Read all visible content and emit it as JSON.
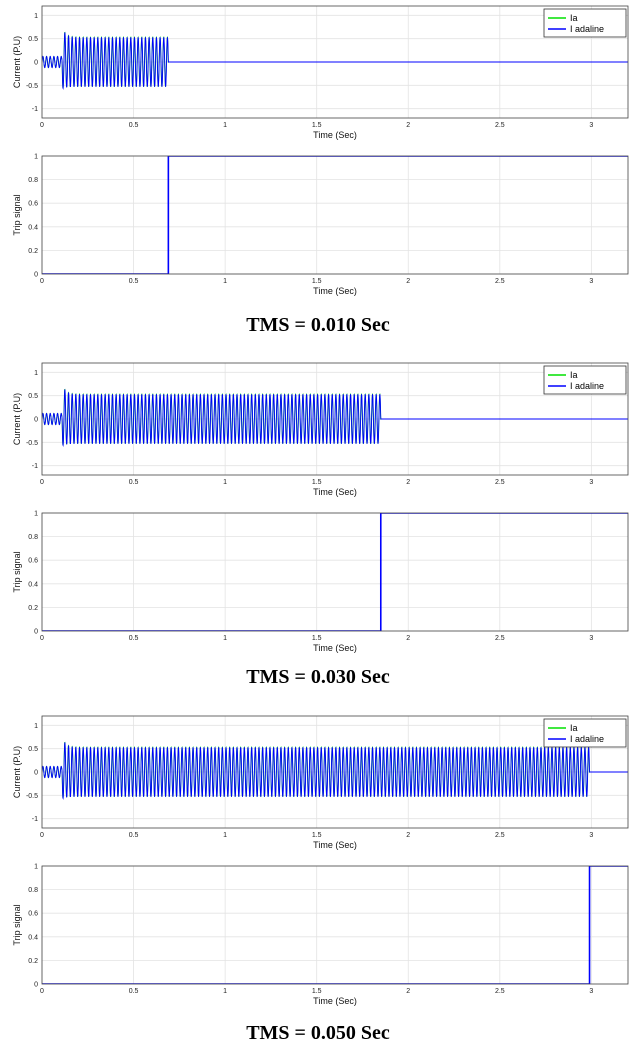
{
  "panels": [
    {
      "caption": "TMS = 0.010 Sec",
      "current_plot": {
        "xlabel": "Time (Sec)",
        "ylabel": "Current (P.U)",
        "legend": [
          "Ia",
          "I adaline"
        ]
      },
      "trip_plot": {
        "xlabel": "Time (Sec)",
        "ylabel": "Trip signal"
      }
    },
    {
      "caption": "TMS = 0.030 Sec",
      "current_plot": {
        "xlabel": "Time (Sec)",
        "ylabel": "Current (P.U)",
        "legend": [
          "Ia",
          "I adaline"
        ]
      },
      "trip_plot": {
        "xlabel": "Time (Sec)",
        "ylabel": "Trip signal"
      }
    },
    {
      "caption": "TMS = 0.050 Sec",
      "current_plot": {
        "xlabel": "Time (Sec)",
        "ylabel": "Current (P.U)",
        "legend": [
          "Ia",
          "I adaline"
        ]
      },
      "trip_plot": {
        "xlabel": "Time (Sec)",
        "ylabel": "Trip signal"
      }
    }
  ],
  "chart_data": [
    {
      "type": "line",
      "title": "",
      "xlabel": "Time (Sec)",
      "ylabel": "Current (P.U)",
      "xlim": [
        0,
        3.2
      ],
      "ylim": [
        -1.2,
        1.2
      ],
      "xticks": [
        "0",
        "0.5",
        "1",
        "1.5",
        "2",
        "2.5",
        "3"
      ],
      "yticks": [
        "-1",
        "-0.5",
        "0",
        "0.5",
        "1"
      ],
      "grid": true,
      "legend_position": "top-right",
      "series": [
        {
          "name": "Ia",
          "color": "#00e000"
        },
        {
          "name": "I adaline",
          "color": "#0000ff"
        }
      ],
      "signal": {
        "prefault_amp": 0.12,
        "fault_start": 0.11,
        "fault_peak": 0.75,
        "fault_amp": 0.53,
        "trip_time": 0.69
      }
    },
    {
      "type": "line",
      "title": "",
      "xlabel": "Time (Sec)",
      "ylabel": "Trip signal",
      "xlim": [
        0,
        3.2
      ],
      "ylim": [
        0,
        1
      ],
      "xticks": [
        "0",
        "0.5",
        "1",
        "1.5",
        "2",
        "2.5",
        "3"
      ],
      "yticks": [
        "0",
        "0.2",
        "0.4",
        "0.6",
        "0.8",
        "1"
      ],
      "grid": true,
      "series": [
        {
          "color": "#0000ff",
          "x": [
            0,
            0.69,
            0.69,
            3.2
          ],
          "y": [
            0,
            0,
            1,
            1
          ]
        }
      ]
    },
    {
      "type": "line",
      "title": "",
      "xlabel": "Time (Sec)",
      "ylabel": "Current (P.U)",
      "xlim": [
        0,
        3.2
      ],
      "ylim": [
        -1.2,
        1.2
      ],
      "xticks": [
        "0",
        "0.5",
        "1",
        "1.5",
        "2",
        "2.5",
        "3"
      ],
      "yticks": [
        "-1",
        "-0.5",
        "0",
        "0.5",
        "1"
      ],
      "grid": true,
      "legend_position": "top-right",
      "series": [
        {
          "name": "Ia",
          "color": "#00e000"
        },
        {
          "name": "I adaline",
          "color": "#0000ff"
        }
      ],
      "signal": {
        "prefault_amp": 0.12,
        "fault_start": 0.11,
        "fault_peak": 0.75,
        "fault_amp": 0.53,
        "trip_time": 1.85
      }
    },
    {
      "type": "line",
      "title": "",
      "xlabel": "Time (Sec)",
      "ylabel": "Trip signal",
      "xlim": [
        0,
        3.2
      ],
      "ylim": [
        0,
        1
      ],
      "xticks": [
        "0",
        "0.5",
        "1",
        "1.5",
        "2",
        "2.5",
        "3"
      ],
      "yticks": [
        "0",
        "0.2",
        "0.4",
        "0.6",
        "0.8",
        "1"
      ],
      "grid": true,
      "series": [
        {
          "color": "#0000ff",
          "x": [
            0,
            1.85,
            1.85,
            3.2
          ],
          "y": [
            0,
            0,
            1,
            1
          ]
        }
      ]
    },
    {
      "type": "line",
      "title": "",
      "xlabel": "Time (Sec)",
      "ylabel": "Current (P.U)",
      "xlim": [
        0,
        3.2
      ],
      "ylim": [
        -1.2,
        1.2
      ],
      "xticks": [
        "0",
        "0.5",
        "1",
        "1.5",
        "2",
        "2.5",
        "3"
      ],
      "yticks": [
        "-1",
        "-0.5",
        "0",
        "0.5",
        "1"
      ],
      "grid": true,
      "legend_position": "top-right",
      "series": [
        {
          "name": "Ia",
          "color": "#00e000"
        },
        {
          "name": "I adaline",
          "color": "#0000ff"
        }
      ],
      "signal": {
        "prefault_amp": 0.12,
        "fault_start": 0.11,
        "fault_peak": 0.75,
        "fault_amp": 0.53,
        "trip_time": 2.99
      }
    },
    {
      "type": "line",
      "title": "",
      "xlabel": "Time (Sec)",
      "ylabel": "Trip signal",
      "xlim": [
        0,
        3.2
      ],
      "ylim": [
        0,
        1
      ],
      "xticks": [
        "0",
        "0.5",
        "1",
        "1.5",
        "2",
        "2.5",
        "3"
      ],
      "yticks": [
        "0",
        "0.2",
        "0.4",
        "0.6",
        "0.8",
        "1"
      ],
      "grid": true,
      "series": [
        {
          "color": "#0000ff",
          "x": [
            0,
            2.99,
            2.99,
            3.2
          ],
          "y": [
            0,
            0,
            1,
            1
          ]
        }
      ]
    }
  ]
}
